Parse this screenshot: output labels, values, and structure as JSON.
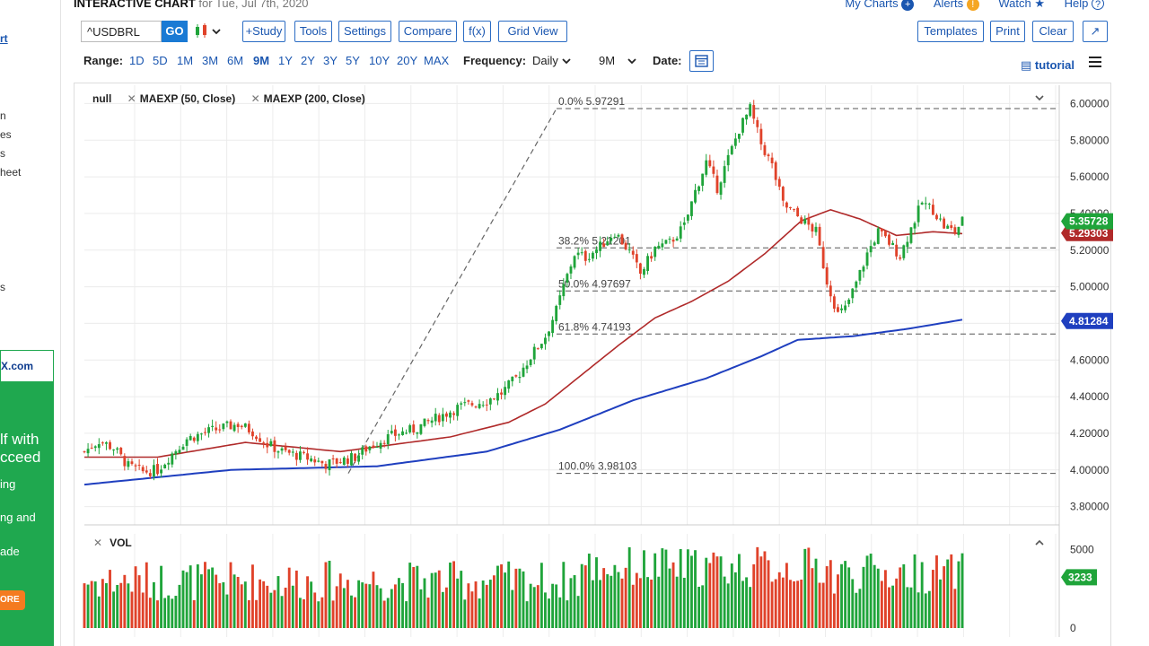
{
  "header": {
    "title": "INTERACTIVE CHART",
    "date": "for Tue, Jul 7th, 2020",
    "links": [
      "My Charts",
      "Alerts",
      "Watch",
      "Help"
    ]
  },
  "toolbar": {
    "symbol": "^USDBRL",
    "go": "GO",
    "study": "+Study",
    "tools": "Tools",
    "settings": "Settings",
    "compare": "Compare",
    "fx": "f(x)",
    "grid_view": "Grid View",
    "templates": "Templates",
    "print": "Print",
    "clear": "Clear"
  },
  "range": {
    "label": "Range:",
    "options": [
      "1D",
      "5D",
      "1M",
      "3M",
      "6M",
      "9M",
      "1Y",
      "2Y",
      "3Y",
      "5Y",
      "10Y",
      "20Y",
      "MAX"
    ],
    "active": "9M",
    "frequency_label": "Frequency:",
    "frequency": "Daily",
    "period": "9M",
    "date_label": "Date:",
    "tutorial": "tutorial"
  },
  "legend": {
    "series": "null",
    "study1": "MAEXP (50, Close)",
    "study2": "MAEXP (200, Close)",
    "volume": "VOL"
  },
  "sidebar": {
    "fragments": [
      "rt",
      "n",
      "es",
      "s",
      "heet",
      "s"
    ],
    "ad_logo": "X.com",
    "ad_lines": [
      "lf with",
      "cceed",
      "ing",
      "ng and",
      "ade"
    ],
    "ad_button": "ORE"
  },
  "colors": {
    "up": "#1fa43a",
    "down": "#e0422a",
    "ma50": "#b02a2a",
    "ma200": "#1f3fbf",
    "badge_price": "#1fa43a",
    "badge_ma50": "#b02a2a",
    "badge_ma200": "#1f3fbf"
  },
  "chart_data": {
    "type": "candlestick",
    "symbol": "^USDBRL",
    "frequency": "Daily",
    "range": "9M",
    "ylim": [
      3.7,
      6.1
    ],
    "yticks": [
      "6.00000",
      "5.80000",
      "5.60000",
      "5.40000",
      "5.20000",
      "5.00000",
      "4.80000",
      "4.60000",
      "4.40000",
      "4.20000",
      "4.00000",
      "3.80000"
    ],
    "price_anchors": [
      [
        0,
        4.1
      ],
      [
        4,
        4.16
      ],
      [
        8,
        4.12
      ],
      [
        12,
        4.02
      ],
      [
        16,
        3.99
      ],
      [
        20,
        4.0
      ],
      [
        24,
        4.09
      ],
      [
        28,
        4.17
      ],
      [
        34,
        4.21
      ],
      [
        38,
        4.23
      ],
      [
        42,
        4.25
      ],
      [
        46,
        4.21
      ],
      [
        50,
        4.14
      ],
      [
        54,
        4.1
      ],
      [
        58,
        4.08
      ],
      [
        62,
        4.06
      ],
      [
        66,
        4.03
      ],
      [
        70,
        4.05
      ],
      [
        74,
        4.07
      ],
      [
        78,
        4.13
      ],
      [
        82,
        4.17
      ],
      [
        86,
        4.2
      ],
      [
        90,
        4.22
      ],
      [
        94,
        4.26
      ],
      [
        98,
        4.3
      ],
      [
        102,
        4.34
      ],
      [
        106,
        4.36
      ],
      [
        110,
        4.38
      ],
      [
        114,
        4.42
      ],
      [
        118,
        4.5
      ],
      [
        122,
        4.62
      ],
      [
        126,
        4.73
      ],
      [
        129,
        4.87
      ],
      [
        131,
        5.0
      ],
      [
        134,
        5.18
      ],
      [
        137,
        5.16
      ],
      [
        141,
        5.22
      ],
      [
        145,
        5.3
      ],
      [
        149,
        5.19
      ],
      [
        152,
        5.07
      ],
      [
        156,
        5.21
      ],
      [
        160,
        5.24
      ],
      [
        164,
        5.33
      ],
      [
        167,
        5.52
      ],
      [
        170,
        5.68
      ],
      [
        173,
        5.54
      ],
      [
        176,
        5.7
      ],
      [
        179,
        5.86
      ],
      [
        182,
        5.97
      ],
      [
        185,
        5.78
      ],
      [
        188,
        5.66
      ],
      [
        191,
        5.45
      ],
      [
        194,
        5.4
      ],
      [
        197,
        5.35
      ],
      [
        200,
        5.3
      ],
      [
        203,
        5.03
      ],
      [
        206,
        4.85
      ],
      [
        208,
        4.88
      ],
      [
        211,
        5.02
      ],
      [
        214,
        5.18
      ],
      [
        217,
        5.3
      ],
      [
        220,
        5.24
      ],
      [
        223,
        5.17
      ],
      [
        226,
        5.32
      ],
      [
        229,
        5.46
      ],
      [
        232,
        5.42
      ],
      [
        235,
        5.33
      ],
      [
        238,
        5.3
      ],
      [
        240,
        5.36
      ]
    ],
    "ma50_anchors": [
      [
        0,
        4.07
      ],
      [
        20,
        4.07
      ],
      [
        44,
        4.15
      ],
      [
        70,
        4.1
      ],
      [
        100,
        4.18
      ],
      [
        116,
        4.26
      ],
      [
        126,
        4.36
      ],
      [
        136,
        4.52
      ],
      [
        146,
        4.68
      ],
      [
        156,
        4.83
      ],
      [
        166,
        4.92
      ],
      [
        176,
        5.03
      ],
      [
        186,
        5.18
      ],
      [
        196,
        5.36
      ],
      [
        204,
        5.42
      ],
      [
        212,
        5.37
      ],
      [
        222,
        5.28
      ],
      [
        232,
        5.3
      ],
      [
        240,
        5.29
      ]
    ],
    "ma200_anchors": [
      [
        0,
        3.92
      ],
      [
        40,
        4.0
      ],
      [
        80,
        4.02
      ],
      [
        110,
        4.1
      ],
      [
        130,
        4.22
      ],
      [
        150,
        4.38
      ],
      [
        170,
        4.5
      ],
      [
        185,
        4.62
      ],
      [
        195,
        4.71
      ],
      [
        210,
        4.73
      ],
      [
        225,
        4.77
      ],
      [
        240,
        4.82
      ]
    ],
    "last_values": {
      "price": "5.35728",
      "ma50": "5.29303",
      "ma200": "4.81284"
    },
    "fibonacci": [
      {
        "label": "0.0% 5.97291",
        "value": 5.97291
      },
      {
        "label": "38.2% 5.21201",
        "value": 5.21201
      },
      {
        "label": "50.0% 4.97697",
        "value": 4.97697
      },
      {
        "label": "61.8% 4.74193",
        "value": 4.74193
      },
      {
        "label": "100.0% 3.98103",
        "value": 3.98103
      }
    ],
    "volume": {
      "ylim": [
        0,
        6000
      ],
      "yticks": [
        "5000",
        "0"
      ],
      "last": "3233"
    }
  }
}
